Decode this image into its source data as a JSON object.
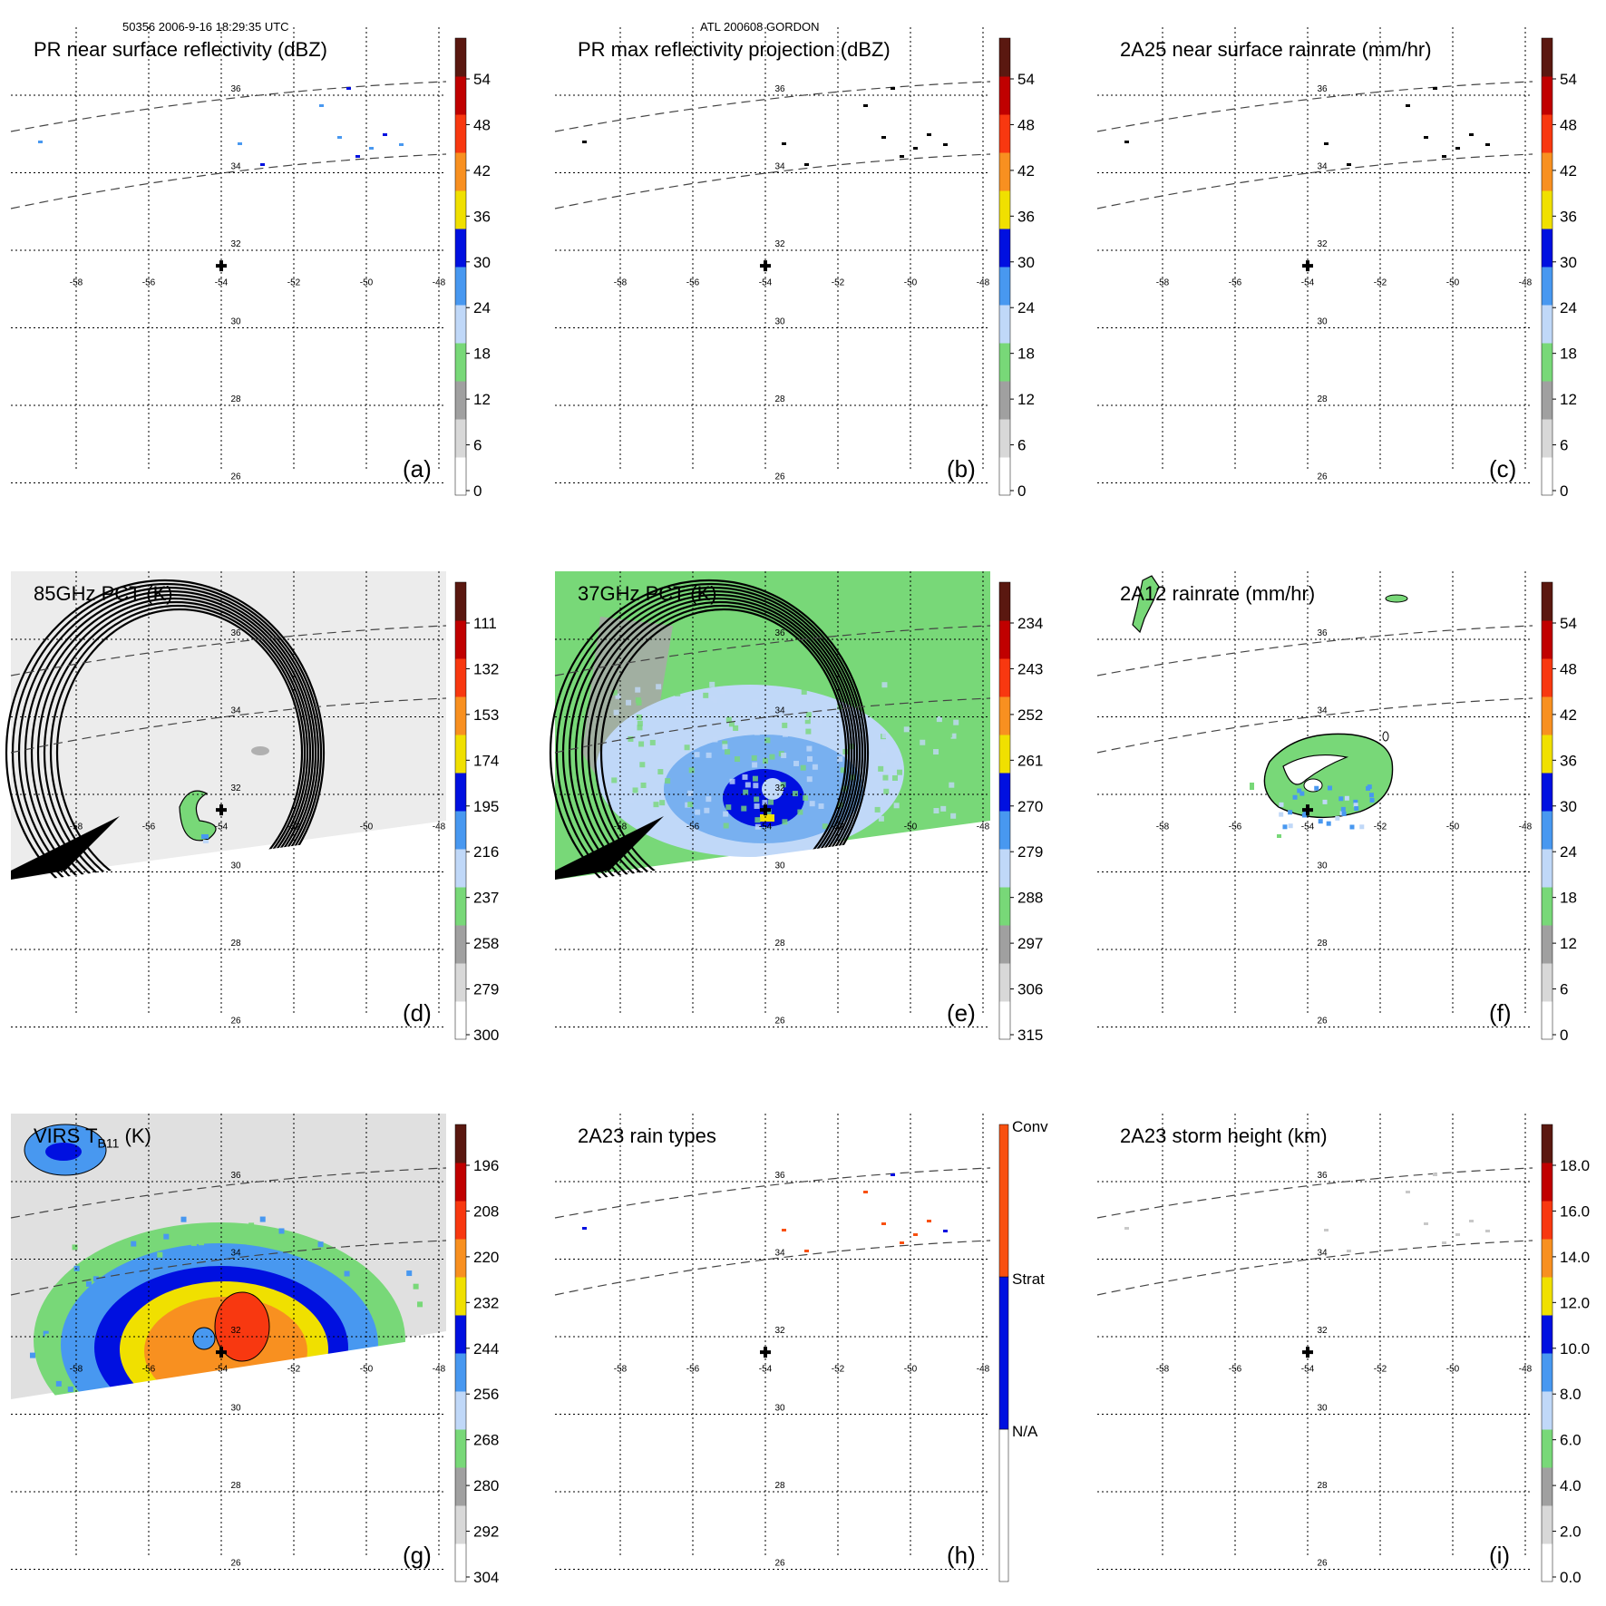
{
  "header": {
    "left": "50356 2006-9-16 18:29:35 UTC",
    "center": "ATL 200608 GORDON"
  },
  "colors": {
    "rainbow": [
      "#ffffff",
      "#d8d8d8",
      "#a0a0a0",
      "#78d878",
      "#c0d8f8",
      "#4898f0",
      "#0010e0",
      "#f0e000",
      "#f89020",
      "#f83810",
      "#c00000",
      "#5a1810"
    ],
    "raintype": [
      "#ffffff",
      "#0010e0",
      "#f85010"
    ],
    "grid": "#000000",
    "swath": "#444444",
    "pct_fill": "#ececec",
    "virs_fill": "#e0e0e0"
  },
  "chart_data": [
    {
      "id": "a",
      "type": "heatmap",
      "title": "PR near surface reflectivity (dBZ)",
      "panel_label": "(a)",
      "lon_ticks": [
        "-58",
        "-56",
        "-54",
        "-52",
        "-50",
        "-48"
      ],
      "lat_ticks": [
        "36",
        "34",
        "32",
        "30",
        "28",
        "26"
      ],
      "center": {
        "lon": -54,
        "lat": 31.6
      },
      "colorbar": {
        "ticks": [
          "54",
          "48",
          "42",
          "36",
          "30",
          "24",
          "18",
          "12",
          "6",
          "0"
        ],
        "range": [
          0,
          60
        ],
        "palette": "rainbow"
      },
      "features": {
        "swath": "pr",
        "field": "pr_sparse_blue",
        "contours": false
      }
    },
    {
      "id": "b",
      "type": "heatmap",
      "title": "PR max reflectivity projection (dBZ)",
      "panel_label": "(b)",
      "lon_ticks": [
        "-58",
        "-56",
        "-54",
        "-52",
        "-50",
        "-48"
      ],
      "lat_ticks": [
        "36",
        "34",
        "32",
        "30",
        "28",
        "26"
      ],
      "center": {
        "lon": -54,
        "lat": 31.6
      },
      "colorbar": {
        "ticks": [
          "54",
          "48",
          "42",
          "36",
          "30",
          "24",
          "18",
          "12",
          "6",
          "0"
        ],
        "range": [
          0,
          60
        ],
        "palette": "rainbow"
      },
      "features": {
        "swath": "pr",
        "field": "pr_sparse_black",
        "contours": false
      }
    },
    {
      "id": "c",
      "type": "heatmap",
      "title": "2A25 near surface rainrate (mm/hr)",
      "panel_label": "(c)",
      "lon_ticks": [
        "-58",
        "-56",
        "-54",
        "-52",
        "-50",
        "-48"
      ],
      "lat_ticks": [
        "36",
        "34",
        "32",
        "30",
        "28",
        "26"
      ],
      "center": {
        "lon": -54,
        "lat": 31.6
      },
      "colorbar": {
        "ticks": [
          "54",
          "48",
          "42",
          "36",
          "30",
          "24",
          "18",
          "12",
          "6",
          "0"
        ],
        "range": [
          0,
          60
        ],
        "palette": "rainbow"
      },
      "features": {
        "swath": "pr",
        "field": "pr_sparse_black",
        "contours": false
      }
    },
    {
      "id": "d",
      "type": "heatmap",
      "title": "85GHz PCT (K)",
      "panel_label": "(d)",
      "lon_ticks": [
        "-58",
        "-56",
        "-54",
        "-52",
        "-50",
        "-48"
      ],
      "lat_ticks": [
        "36",
        "34",
        "32",
        "30",
        "28",
        "26"
      ],
      "center": {
        "lon": -54,
        "lat": 31.6
      },
      "colorbar": {
        "ticks": [
          "111",
          "132",
          "153",
          "174",
          "195",
          "216",
          "237",
          "258",
          "279",
          "300"
        ],
        "range": [
          300,
          90
        ],
        "palette": "rainbow"
      },
      "features": {
        "swath": "tmi",
        "field": "pct85",
        "contours": true
      }
    },
    {
      "id": "e",
      "type": "heatmap",
      "title": "37GHz PCT (K)",
      "panel_label": "(e)",
      "lon_ticks": [
        "-58",
        "-56",
        "-54",
        "-52",
        "-50",
        "-48"
      ],
      "lat_ticks": [
        "36",
        "34",
        "32",
        "30",
        "28",
        "26"
      ],
      "center": {
        "lon": -54,
        "lat": 31.6
      },
      "colorbar": {
        "ticks": [
          "234",
          "243",
          "252",
          "261",
          "270",
          "279",
          "288",
          "297",
          "306",
          "315"
        ],
        "range": [
          315,
          225
        ],
        "palette": "rainbow"
      },
      "features": {
        "swath": "tmi",
        "field": "pct37",
        "contours": false
      }
    },
    {
      "id": "f",
      "type": "heatmap",
      "title": "2A12 rainrate (mm/hr)",
      "panel_label": "(f)",
      "lon_ticks": [
        "-58",
        "-56",
        "-54",
        "-52",
        "-50",
        "-48"
      ],
      "lat_ticks": [
        "36",
        "34",
        "32",
        "30",
        "28",
        "26"
      ],
      "center": {
        "lon": -54,
        "lat": 31.6
      },
      "colorbar": {
        "ticks": [
          "54",
          "48",
          "42",
          "36",
          "30",
          "24",
          "18",
          "12",
          "6",
          "0"
        ],
        "range": [
          0,
          60
        ],
        "palette": "rainbow"
      },
      "features": {
        "swath": "pr",
        "field": "rain2a12",
        "contours": true
      }
    },
    {
      "id": "g",
      "type": "heatmap",
      "title": "VIRS T",
      "title_sub": "B11",
      "title_unit": " (K)",
      "panel_label": "(g)",
      "lon_ticks": [
        "-58",
        "-56",
        "-54",
        "-52",
        "-50",
        "-48"
      ],
      "lat_ticks": [
        "36",
        "34",
        "32",
        "30",
        "28",
        "26"
      ],
      "center": {
        "lon": -54,
        "lat": 31.6
      },
      "colorbar": {
        "ticks": [
          "196",
          "208",
          "220",
          "232",
          "244",
          "256",
          "268",
          "280",
          "292",
          "304"
        ],
        "range": [
          304,
          184
        ],
        "palette": "rainbow"
      },
      "features": {
        "swath": "virs",
        "field": "virs",
        "contours": true
      }
    },
    {
      "id": "h",
      "type": "heatmap",
      "title": "2A23 rain types",
      "panel_label": "(h)",
      "lon_ticks": [
        "-58",
        "-56",
        "-54",
        "-52",
        "-50",
        "-48"
      ],
      "lat_ticks": [
        "36",
        "34",
        "32",
        "30",
        "28",
        "26"
      ],
      "center": {
        "lon": -54,
        "lat": 31.6
      },
      "colorbar": {
        "ticks": [
          "Conv",
          "Strat",
          "N/A"
        ],
        "categories": [
          "N/A",
          "Strat",
          "Conv"
        ],
        "palette": "raintype",
        "categorical": true
      },
      "features": {
        "swath": "pr",
        "field": "raintypes",
        "contours": false
      }
    },
    {
      "id": "i",
      "type": "heatmap",
      "title": "2A23 storm height (km)",
      "panel_label": "(i)",
      "lon_ticks": [
        "-58",
        "-56",
        "-54",
        "-52",
        "-50",
        "-48"
      ],
      "lat_ticks": [
        "36",
        "34",
        "32",
        "30",
        "28",
        "26"
      ],
      "center": {
        "lon": -54,
        "lat": 31.6
      },
      "colorbar": {
        "ticks": [
          "18.0",
          "16.0",
          "14.0",
          "12.0",
          "10.0",
          "8.0",
          "6.0",
          "4.0",
          "2.0",
          "0.0"
        ],
        "range": [
          0,
          20
        ],
        "palette": "rainbow"
      },
      "features": {
        "swath": "pr",
        "field": "stormheight",
        "contours": false
      }
    }
  ]
}
